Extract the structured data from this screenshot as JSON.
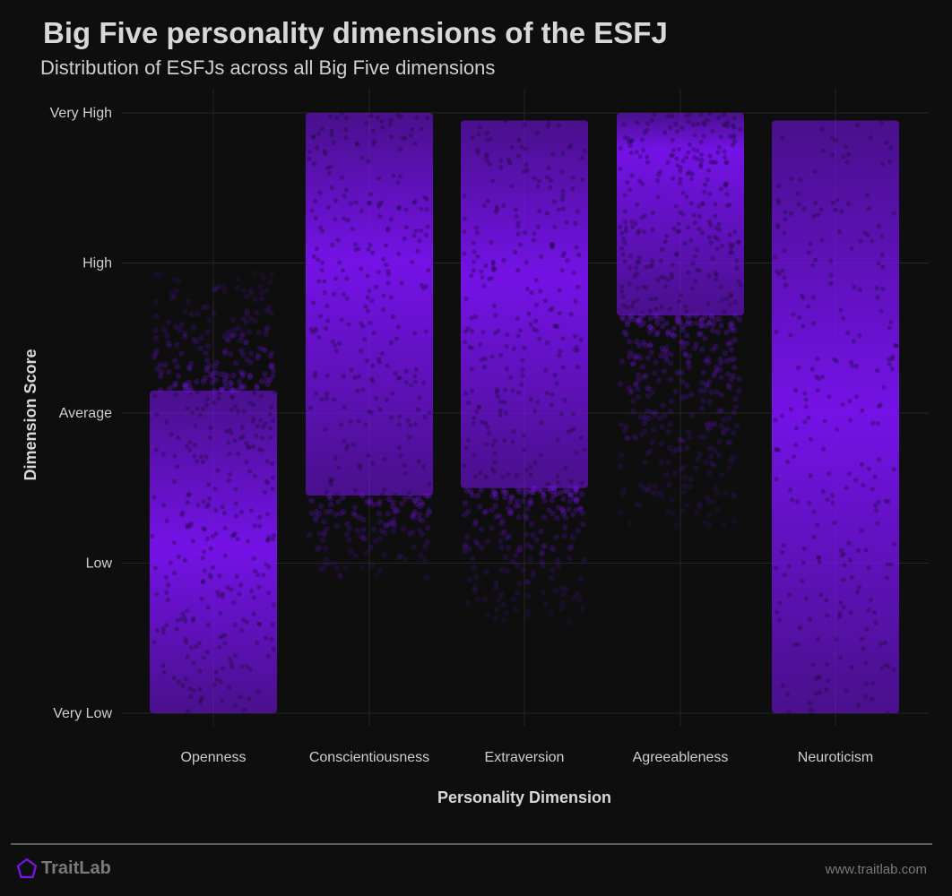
{
  "header": {
    "title": "Big Five personality dimensions of the ESFJ",
    "subtitle": "Distribution of ESFJs across all Big Five dimensions"
  },
  "footer": {
    "brand": "TraitLab",
    "url": "www.traitlab.com"
  },
  "colors": {
    "background": "#0e0e0f",
    "point": "#7a12f2",
    "grid": "#262626",
    "text": "#d8d8d8",
    "brand_icon": "#7a12f2"
  },
  "chart_data": {
    "type": "scatter",
    "title": "Big Five personality dimensions of the ESFJ",
    "subtitle": "Distribution of ESFJs across all Big Five dimensions",
    "xlabel": "Personality Dimension",
    "ylabel": "Dimension Score",
    "categories": [
      "Openness",
      "Conscientiousness",
      "Extraversion",
      "Agreeableness",
      "Neuroticism"
    ],
    "y_ticks": [
      "Very Low",
      "Low",
      "Average",
      "High",
      "Very High"
    ],
    "ylim": [
      0,
      4
    ],
    "grid": true,
    "series": [
      {
        "values": {
          "min": 0.0,
          "dense_low": 0.0,
          "dense_high": 2.15,
          "max": 2.95,
          "center": 1.1
        }
      },
      {
        "values": {
          "min": 0.9,
          "dense_low": 1.45,
          "dense_high": 4.0,
          "max": 4.0,
          "center": 3.0
        }
      },
      {
        "values": {
          "min": 0.6,
          "dense_low": 1.5,
          "dense_high": 3.95,
          "max": 3.95,
          "center": 2.9
        }
      },
      {
        "values": {
          "min": 1.25,
          "dense_low": 2.65,
          "dense_high": 4.0,
          "max": 4.0,
          "center": 3.75
        }
      },
      {
        "values": {
          "min": 0.0,
          "dense_low": 0.0,
          "dense_high": 3.95,
          "max": 3.95,
          "center": 2.0
        }
      }
    ]
  }
}
